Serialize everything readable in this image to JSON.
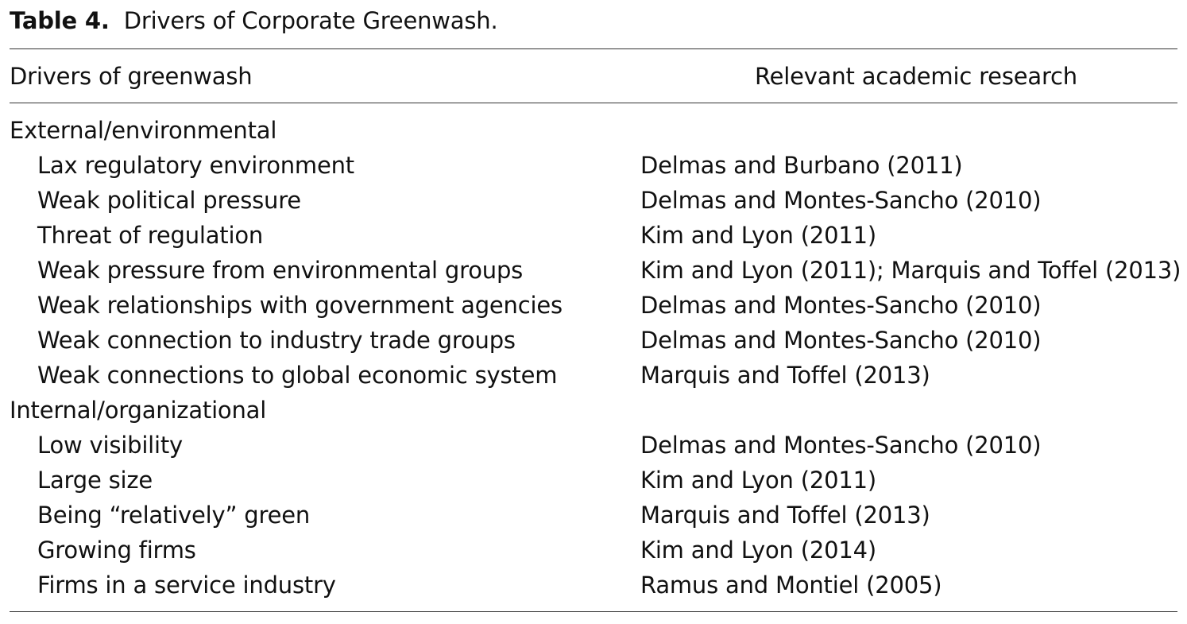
{
  "caption": {
    "label": "Table 4.",
    "title": "Drivers of Corporate Greenwash."
  },
  "header": {
    "col1": "Drivers of greenwash",
    "col2": "Relevant academic research"
  },
  "groups": [
    {
      "title": "External/environmental",
      "rows": [
        {
          "driver": "Lax regulatory environment",
          "research": "Delmas and Burbano (2011)"
        },
        {
          "driver": "Weak political pressure",
          "research": "Delmas and Montes-Sancho (2010)"
        },
        {
          "driver": "Threat of regulation",
          "research": "Kim and Lyon (2011)"
        },
        {
          "driver": "Weak pressure from environmental groups",
          "research": "Kim and Lyon (2011); Marquis and Toffel (2013)"
        },
        {
          "driver": "Weak relationships with government agencies",
          "research": "Delmas and Montes-Sancho (2010)"
        },
        {
          "driver": "Weak connection to industry trade groups",
          "research": "Delmas and Montes-Sancho (2010)"
        },
        {
          "driver": "Weak connections to global economic system",
          "research": "Marquis and Toffel (2013)"
        }
      ]
    },
    {
      "title": "Internal/organizational",
      "rows": [
        {
          "driver": "Low visibility",
          "research": "Delmas and Montes-Sancho (2010)"
        },
        {
          "driver": "Large size",
          "research": "Kim and Lyon (2011)"
        },
        {
          "driver": "Being “relatively” green",
          "research": "Marquis and Toffel (2013)"
        },
        {
          "driver": "Growing firms",
          "research": "Kim and Lyon (2014)"
        },
        {
          "driver": "Firms in a service industry",
          "research": "Ramus and Montiel (2005)"
        }
      ]
    }
  ]
}
